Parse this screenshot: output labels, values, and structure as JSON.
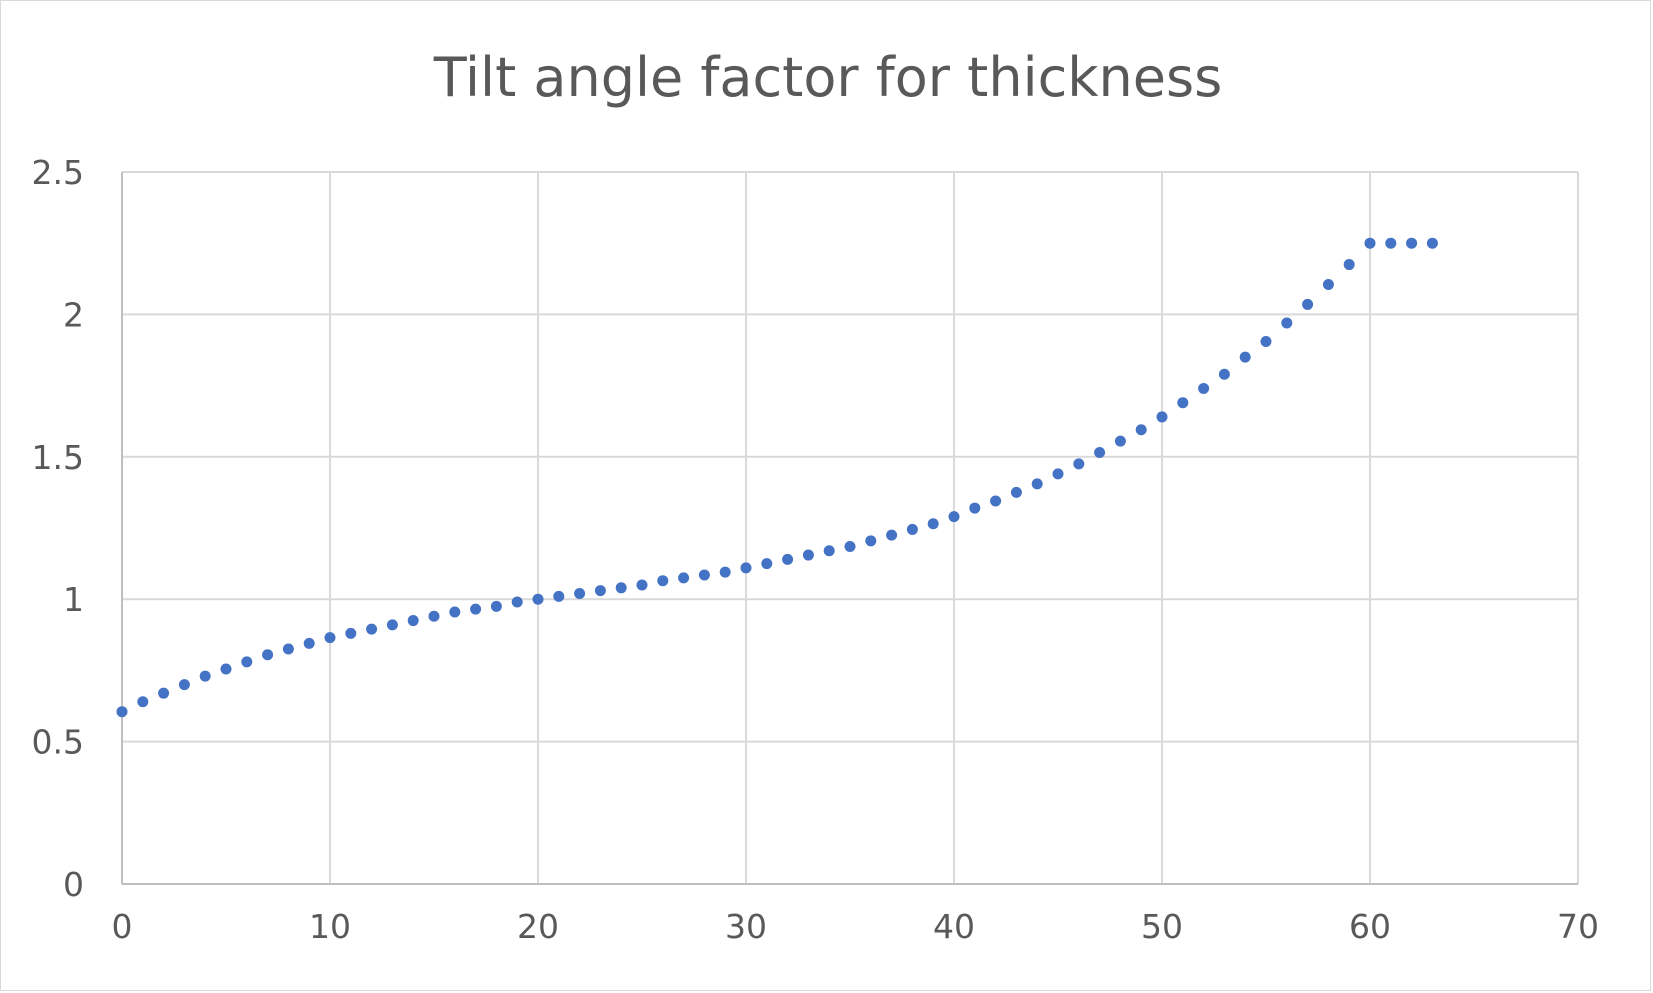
{
  "chart_data": {
    "type": "scatter",
    "title": "Tilt angle factor for thickness",
    "xlabel": "",
    "ylabel": "",
    "xlim": [
      0,
      70
    ],
    "ylim": [
      0,
      2.5
    ],
    "xticks": [
      "0",
      "10",
      "20",
      "30",
      "40",
      "50",
      "60",
      "70"
    ],
    "yticks": [
      "0",
      "0.5",
      "1",
      "1.5",
      "2",
      "2.5"
    ],
    "grid": true,
    "legend": "none",
    "marker_color": "#4472c4",
    "series": [
      {
        "x": [
          0,
          1,
          2,
          3,
          4,
          5,
          6,
          7,
          8,
          9,
          10,
          11,
          12,
          13,
          14,
          15,
          16,
          17,
          18,
          19,
          20,
          21,
          22,
          23,
          24,
          25,
          26,
          27,
          28,
          29,
          30,
          31,
          32,
          33,
          34,
          35,
          36,
          37,
          38,
          39,
          40,
          41,
          42,
          43,
          44,
          45,
          46,
          47,
          48,
          49,
          50,
          51,
          52,
          53,
          54,
          55,
          56,
          57,
          58,
          59,
          60,
          61,
          62,
          63
        ],
        "y": [
          0.605,
          0.64,
          0.67,
          0.7,
          0.73,
          0.755,
          0.78,
          0.805,
          0.825,
          0.845,
          0.865,
          0.88,
          0.895,
          0.91,
          0.925,
          0.94,
          0.955,
          0.965,
          0.975,
          0.99,
          1.0,
          1.01,
          1.02,
          1.03,
          1.04,
          1.05,
          1.065,
          1.075,
          1.085,
          1.095,
          1.11,
          1.125,
          1.14,
          1.155,
          1.17,
          1.185,
          1.205,
          1.225,
          1.245,
          1.265,
          1.29,
          1.32,
          1.345,
          1.375,
          1.405,
          1.44,
          1.475,
          1.515,
          1.555,
          1.595,
          1.64,
          1.69,
          1.74,
          1.79,
          1.85,
          1.905,
          1.97,
          2.035,
          2.105,
          2.175,
          2.25,
          2.25,
          2.25,
          2.25
        ]
      }
    ]
  }
}
